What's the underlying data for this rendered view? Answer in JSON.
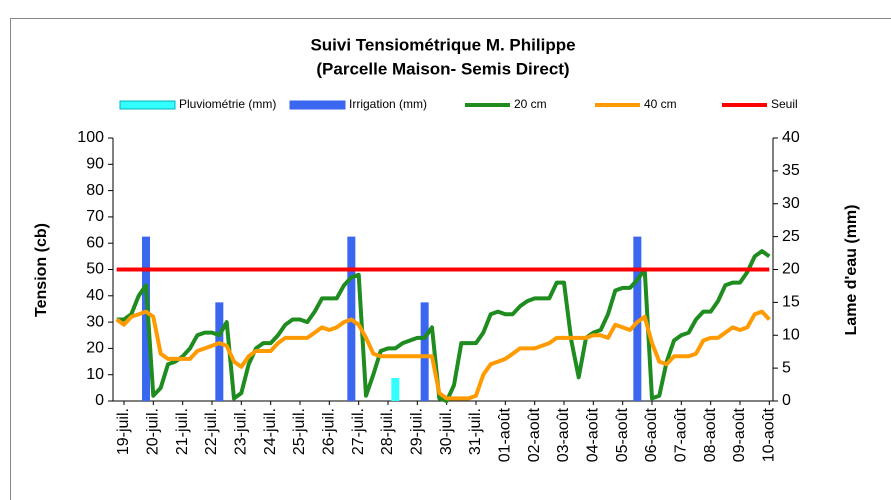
{
  "chart_data": {
    "type": "line",
    "title": "Suivi Tensiométrique M. Philippe",
    "subtitle": "(Parcelle Maison- Semis Direct)",
    "ylabel": "Tension (cb)",
    "y2label": "Lame d'eau (mm)",
    "ylim": [
      0,
      100
    ],
    "yticks": [
      0,
      10,
      20,
      30,
      40,
      50,
      60,
      70,
      80,
      90,
      100
    ],
    "y2lim": [
      0,
      40
    ],
    "y2ticks": [
      0,
      5,
      10,
      15,
      20,
      25,
      30,
      35,
      40
    ],
    "categories": [
      null,
      "19-juil.",
      null,
      null,
      null,
      "20-juil.",
      null,
      null,
      null,
      "21-juil.",
      null,
      null,
      null,
      "22-juil.",
      null,
      null,
      null,
      "23-juil.",
      null,
      null,
      null,
      "24-juil.",
      null,
      null,
      null,
      "25-juil.",
      null,
      null,
      null,
      "26-juil.",
      null,
      null,
      null,
      "27-juil.",
      null,
      null,
      null,
      "28-juil.",
      null,
      null,
      null,
      "29-juil.",
      null,
      null,
      null,
      "30-juil.",
      null,
      null,
      null,
      "31-juil.",
      null,
      null,
      null,
      "01-août",
      null,
      null,
      null,
      "02-août",
      null,
      null,
      null,
      "03-août",
      null,
      null,
      null,
      "04-août",
      null,
      null,
      null,
      "05-août",
      null,
      null,
      null,
      "06-août",
      null,
      null,
      null,
      "07-août",
      null,
      null,
      null,
      "08-août",
      null,
      null,
      null,
      "09-août",
      null,
      null,
      null,
      "10-août"
    ],
    "series": [
      {
        "name": "Pluviométrie (mm)",
        "type": "bar",
        "axis": "y2",
        "color": "#33ffff",
        "values": [
          null,
          null,
          null,
          null,
          null,
          null,
          null,
          null,
          null,
          null,
          null,
          null,
          null,
          null,
          null,
          null,
          null,
          null,
          null,
          null,
          null,
          null,
          null,
          null,
          null,
          null,
          null,
          null,
          null,
          null,
          null,
          null,
          null,
          null,
          null,
          null,
          null,
          null,
          3.5,
          null,
          null,
          null,
          null,
          null,
          null,
          null,
          null,
          null,
          null,
          null,
          null,
          null,
          null,
          null,
          null,
          null,
          null,
          null,
          null,
          null,
          null,
          null,
          null,
          null,
          null,
          null,
          null,
          null,
          null,
          null,
          null,
          null,
          null,
          null,
          null,
          null,
          null,
          null,
          null,
          null,
          null,
          null,
          null,
          null,
          null,
          null,
          null,
          null,
          null,
          null
        ]
      },
      {
        "name": "Irrigation (mm)",
        "type": "bar",
        "axis": "y2",
        "color": "#3a66f0",
        "values": [
          null,
          null,
          null,
          null,
          25,
          null,
          null,
          null,
          null,
          null,
          null,
          null,
          null,
          null,
          15,
          null,
          null,
          null,
          null,
          null,
          null,
          null,
          null,
          null,
          null,
          null,
          null,
          null,
          null,
          null,
          null,
          null,
          25,
          null,
          null,
          null,
          null,
          null,
          null,
          null,
          null,
          null,
          15,
          null,
          null,
          null,
          null,
          null,
          null,
          null,
          null,
          null,
          null,
          null,
          null,
          null,
          null,
          null,
          null,
          null,
          null,
          null,
          null,
          null,
          null,
          null,
          null,
          null,
          null,
          null,
          null,
          25,
          null,
          null,
          null,
          null,
          null,
          null,
          null,
          null,
          null,
          null,
          null,
          null,
          null,
          null,
          null,
          null,
          null,
          null
        ]
      },
      {
        "name": "20 cm",
        "type": "line",
        "color": "#1e8c1e",
        "values": [
          31,
          31,
          33,
          40,
          44,
          2,
          5,
          14,
          15,
          17,
          20,
          25,
          26,
          26,
          25,
          30,
          1,
          3,
          14,
          20,
          22,
          22,
          25,
          29,
          31,
          31,
          30,
          34,
          39,
          39,
          39,
          44,
          47,
          48,
          2,
          10,
          19,
          20,
          20,
          22,
          23,
          24,
          24,
          28,
          1,
          0,
          6,
          22,
          22,
          22,
          26,
          33,
          34,
          33,
          33,
          36,
          38,
          39,
          39,
          39,
          45,
          45,
          23,
          9,
          24,
          26,
          27,
          33,
          42,
          43,
          43,
          46,
          50,
          1,
          2,
          15,
          23,
          25,
          26,
          31,
          34,
          34,
          38,
          44,
          45,
          45,
          49,
          55,
          57,
          55
        ]
      },
      {
        "name": "40 cm",
        "type": "line",
        "color": "#ff9a00",
        "values": [
          31,
          29,
          32,
          33,
          34,
          32,
          18,
          16,
          16,
          16,
          16,
          19,
          20,
          21,
          22,
          21,
          15,
          13,
          17,
          19,
          19,
          19,
          22,
          24,
          24,
          24,
          24,
          26,
          28,
          27,
          28,
          30,
          31,
          29,
          24,
          18,
          17,
          17,
          17,
          17,
          17,
          17,
          17,
          17,
          3,
          1,
          1,
          1,
          1,
          2,
          10,
          14,
          15,
          16,
          18,
          20,
          20,
          20,
          21,
          22,
          24,
          24,
          24,
          24,
          24,
          25,
          25,
          24,
          29,
          28,
          27,
          30,
          32,
          22,
          15,
          14,
          17,
          17,
          17,
          18,
          23,
          24,
          24,
          26,
          28,
          27,
          28,
          33,
          34,
          31
        ]
      },
      {
        "name": "Seuil",
        "type": "line",
        "color": "#ff0000",
        "values": [
          50,
          50,
          50,
          50,
          50,
          50,
          50,
          50,
          50,
          50,
          50,
          50,
          50,
          50,
          50,
          50,
          50,
          50,
          50,
          50,
          50,
          50,
          50,
          50,
          50,
          50,
          50,
          50,
          50,
          50,
          50,
          50,
          50,
          50,
          50,
          50,
          50,
          50,
          50,
          50,
          50,
          50,
          50,
          50,
          50,
          50,
          50,
          50,
          50,
          50,
          50,
          50,
          50,
          50,
          50,
          50,
          50,
          50,
          50,
          50,
          50,
          50,
          50,
          50,
          50,
          50,
          50,
          50,
          50,
          50,
          50,
          50,
          50,
          50,
          50,
          50,
          50,
          50,
          50,
          50,
          50,
          50,
          50,
          50,
          50,
          50,
          50,
          50,
          50,
          50
        ]
      }
    ]
  }
}
